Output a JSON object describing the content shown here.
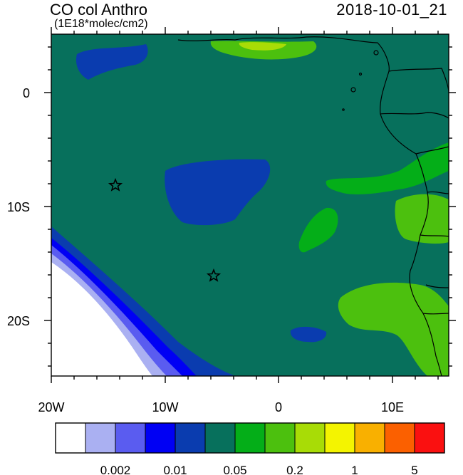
{
  "header": {
    "title": "CO col Anthro",
    "units": "(1E18*molec/cm2)",
    "timestamp": "2018-10-01_21"
  },
  "axes": {
    "lon_ticks": [
      "20W",
      "10W",
      "0",
      "10E"
    ],
    "lat_ticks": [
      "0",
      "10S",
      "20S"
    ]
  },
  "colorbar": {
    "labels": [
      "0.002",
      "0.01",
      "0.05",
      "0.2",
      "1",
      "5"
    ],
    "colors": [
      "#ffffff",
      "#aab0f2",
      "#5a5cf0",
      "#0000f4",
      "#0a3caf",
      "#07705c",
      "#04ae18",
      "#4cc00e",
      "#a8dc06",
      "#f4f400",
      "#f9b000",
      "#fb6000",
      "#fa1010"
    ]
  },
  "colors": {
    "land_sea_bg": "#07705c",
    "low": "#0a3caf",
    "mid": "#4cc00e",
    "elevated": "#04ae18"
  }
}
